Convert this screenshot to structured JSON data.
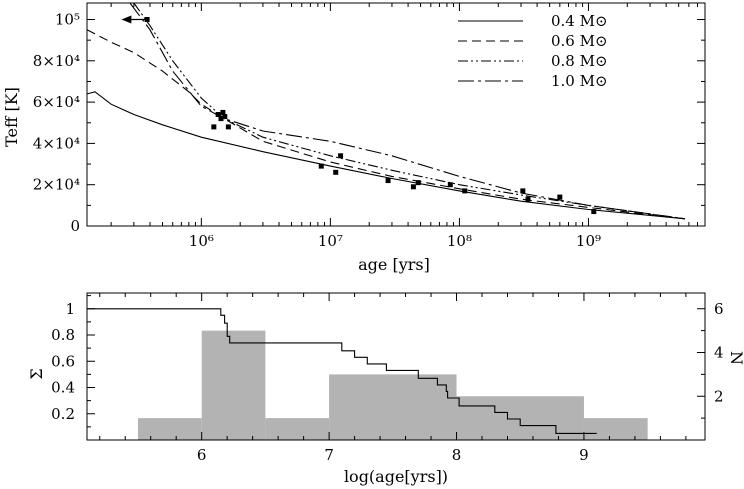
{
  "chart_data": [
    {
      "type": "line",
      "xscale": "log",
      "xlabel": "age [yrs]",
      "ylabel": "Teff [K]",
      "xlim": [
        130000,
        8000000000
      ],
      "ylim": [
        0,
        108000
      ],
      "xticklabels": [
        "10⁶",
        "10⁷",
        "10⁸",
        "10⁹"
      ],
      "xticks": [
        1000000,
        10000000,
        100000000,
        1000000000
      ],
      "yticklabels": [
        "0",
        "2×10⁴",
        "4×10⁴",
        "6×10⁴",
        "8×10⁴",
        "10⁵"
      ],
      "yticks": [
        0,
        20000,
        40000,
        60000,
        80000,
        100000
      ],
      "legend_position": "top-right",
      "series": [
        {
          "name": "0.4 M⊙",
          "dash": "solid",
          "x": [
            130000,
            150000,
            200000,
            300000,
            500000,
            1000000,
            3000000,
            10000000,
            30000000,
            100000000,
            300000000,
            1000000000,
            5600000000
          ],
          "y": [
            64000,
            65000,
            59000,
            54000,
            49000,
            43000,
            36000,
            29000,
            23000,
            17000,
            12000,
            8000,
            3500
          ]
        },
        {
          "name": "0.6 M⊙",
          "dash": "dashed",
          "x": [
            130000,
            200000,
            300000,
            500000,
            800000,
            1000000,
            1500000,
            3000000,
            10000000,
            30000000,
            100000000,
            300000000,
            1000000000,
            5600000000
          ],
          "y": [
            95000,
            89000,
            84000,
            75000,
            65000,
            59000,
            52000,
            41000,
            31000,
            24000,
            18000,
            13000,
            9000,
            3500
          ]
        },
        {
          "name": "0.8 M⊙",
          "dash": "dash-dot-dot",
          "x": [
            300000,
            400000,
            600000,
            1000000,
            1500000,
            3000000,
            10000000,
            30000000,
            100000000,
            300000000,
            1000000000,
            5600000000
          ],
          "y": [
            108000,
            97000,
            80000,
            62000,
            52000,
            43000,
            34000,
            27000,
            20000,
            15000,
            10000,
            3500
          ]
        },
        {
          "name": "1.0 M⊙",
          "dash": "long-dash-dot",
          "x": [
            280000,
            400000,
            600000,
            1000000,
            1500000,
            3000000,
            10000000,
            30000000,
            100000000,
            300000000,
            1000000000,
            5600000000
          ],
          "y": [
            108000,
            95000,
            75000,
            58000,
            52000,
            46000,
            41000,
            34000,
            24000,
            16000,
            10000,
            3500
          ]
        }
      ],
      "points": {
        "x": [
          380000,
          1250000,
          1350000,
          1420000,
          1470000,
          1520000,
          1620000,
          8500000,
          11000000,
          12000000,
          28000000,
          44000000,
          48000000,
          85000000,
          110000000,
          310000000,
          340000000,
          600000000,
          1100000000
        ],
        "y": [
          100000,
          48000,
          54000,
          52000,
          55000,
          53000,
          48000,
          29000,
          26000,
          34000,
          22000,
          19000,
          21000,
          20000,
          17000,
          17000,
          13000,
          14000,
          7000
        ]
      },
      "arrow": {
        "from": [
          380000,
          100000
        ],
        "to": [
          240000,
          100000
        ]
      }
    },
    {
      "type": "bar",
      "xlabel": "log(age[yrs])",
      "ylabel_left": "Σ",
      "ylabel_right": "N",
      "xlim": [
        5.1,
        9.95
      ],
      "ylim_left": [
        0,
        1.12
      ],
      "ylim_right": [
        0,
        6.72
      ],
      "xticks": [
        6,
        7,
        8,
        9
      ],
      "xticklabels": [
        "6",
        "7",
        "8",
        "9"
      ],
      "yticks_left": [
        0.2,
        0.4,
        0.6,
        0.8,
        1
      ],
      "yticklabels_left": [
        "0.2",
        "0.4",
        "0.6",
        "0.8",
        "1"
      ],
      "yticks_right": [
        2,
        4,
        6
      ],
      "yticklabels_right": [
        "2",
        "4",
        "6"
      ],
      "histogram": {
        "bins": [
          [
            5.5,
            6.0
          ],
          [
            6.0,
            6.5
          ],
          [
            6.5,
            7.0
          ],
          [
            7.0,
            8.0
          ],
          [
            8.0,
            9.0
          ],
          [
            9.0,
            9.5
          ]
        ],
        "counts": [
          1,
          5,
          1,
          3,
          2,
          1
        ],
        "color": "#b3b3b3"
      },
      "cumulative": {
        "x": [
          5.1,
          6.1,
          6.15,
          6.15,
          6.18,
          6.18,
          6.2,
          6.2,
          6.22,
          6.22,
          7.1,
          7.1,
          7.2,
          7.2,
          7.3,
          7.3,
          7.45,
          7.45,
          7.7,
          7.7,
          7.85,
          7.85,
          7.92,
          7.92,
          7.93,
          7.93,
          8.02,
          8.02,
          8.3,
          8.3,
          8.4,
          8.4,
          8.5,
          8.5,
          8.78,
          8.78,
          9.1
        ],
        "y": [
          1.0,
          1.0,
          1.0,
          0.95,
          0.95,
          0.89,
          0.89,
          0.79,
          0.79,
          0.74,
          0.74,
          0.68,
          0.68,
          0.63,
          0.63,
          0.58,
          0.58,
          0.53,
          0.53,
          0.47,
          0.47,
          0.42,
          0.42,
          0.37,
          0.37,
          0.32,
          0.32,
          0.26,
          0.26,
          0.21,
          0.21,
          0.16,
          0.16,
          0.11,
          0.11,
          0.05,
          0.05
        ]
      }
    }
  ]
}
